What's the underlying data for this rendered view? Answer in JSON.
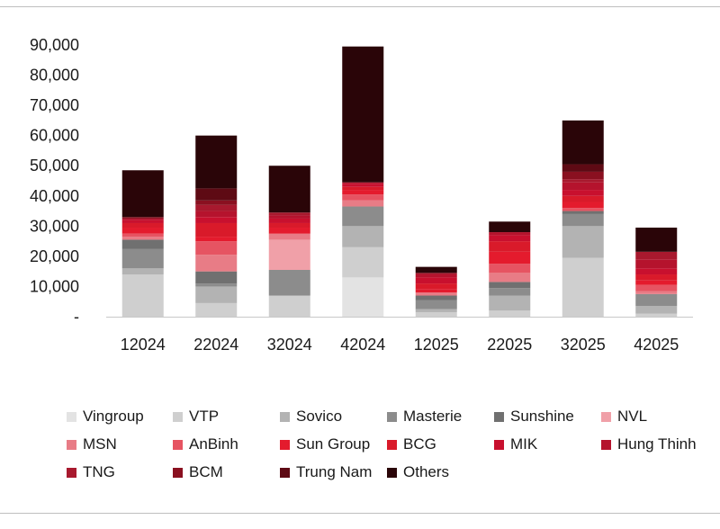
{
  "chart_data": {
    "type": "bar",
    "stacked": true,
    "title": "",
    "xlabel": "",
    "ylabel": "",
    "ylim": [
      0,
      90000
    ],
    "yticks": [
      {
        "value": 0,
        "label": "-"
      },
      {
        "value": 10000,
        "label": "10,000"
      },
      {
        "value": 20000,
        "label": "20,000"
      },
      {
        "value": 30000,
        "label": "30,000"
      },
      {
        "value": 40000,
        "label": "40,000"
      },
      {
        "value": 50000,
        "label": "50,000"
      },
      {
        "value": 60000,
        "label": "60,000"
      },
      {
        "value": 70000,
        "label": "70,000"
      },
      {
        "value": 80000,
        "label": "80,000"
      },
      {
        "value": 90000,
        "label": "90,000"
      }
    ],
    "grid": false,
    "legend_position": "bottom",
    "categories": [
      "12024",
      "22024",
      "32024",
      "42024",
      "12025",
      "22025",
      "32025",
      "42025"
    ],
    "series": [
      {
        "name": "Vingroup",
        "color": "#e3e3e3",
        "values": [
          0,
          0,
          0,
          13000,
          0,
          0,
          0,
          0
        ]
      },
      {
        "name": "VTP",
        "color": "#cfcfcf",
        "values": [
          14000,
          4500,
          7000,
          10000,
          1500,
          2000,
          19500,
          1000
        ]
      },
      {
        "name": "Sovico",
        "color": "#b3b3b3",
        "values": [
          2000,
          5500,
          0,
          7000,
          1000,
          5000,
          10500,
          2500
        ]
      },
      {
        "name": "Masterie",
        "color": "#8c8c8c",
        "values": [
          6500,
          1000,
          8500,
          6500,
          3000,
          2500,
          4000,
          4000
        ]
      },
      {
        "name": "Sunshine",
        "color": "#707070",
        "values": [
          3000,
          4000,
          0,
          0,
          1500,
          2000,
          1000,
          0
        ]
      },
      {
        "name": "NVL",
        "color": "#f0a0a8",
        "values": [
          0,
          0,
          10000,
          0,
          0,
          0,
          0,
          0
        ]
      },
      {
        "name": "MSN",
        "color": "#e87c86",
        "values": [
          1000,
          5500,
          2000,
          2000,
          1000,
          3000,
          0,
          1000
        ]
      },
      {
        "name": "AnBinh",
        "color": "#e65462",
        "values": [
          1000,
          4500,
          0,
          2000,
          0,
          3000,
          1000,
          2000
        ]
      },
      {
        "name": "Sun Group",
        "color": "#e41b2d",
        "values": [
          2000,
          1500,
          2000,
          1500,
          1000,
          4000,
          2000,
          1500
        ]
      },
      {
        "name": "BCG",
        "color": "#d91a2a",
        "values": [
          1500,
          4500,
          1500,
          1000,
          2000,
          3500,
          2000,
          2000
        ]
      },
      {
        "name": "MIK",
        "color": "#c8102e",
        "values": [
          1000,
          2000,
          1500,
          1000,
          2000,
          2000,
          2000,
          2000
        ]
      },
      {
        "name": "Hung Thinh",
        "color": "#b5132d",
        "values": [
          500,
          2000,
          1000,
          500,
          1000,
          1000,
          2500,
          3000
        ]
      },
      {
        "name": "TNG",
        "color": "#a8192e",
        "values": [
          0,
          2000,
          1000,
          0,
          500,
          0,
          1000,
          2500
        ]
      },
      {
        "name": "BCM",
        "color": "#8a1020",
        "values": [
          500,
          1500,
          0,
          0,
          0,
          0,
          2500,
          0
        ]
      },
      {
        "name": "Trung Nam",
        "color": "#5e0a14",
        "values": [
          0,
          4000,
          0,
          0,
          0,
          0,
          2500,
          0
        ]
      },
      {
        "name": "Others",
        "color": "#2a0508",
        "values": [
          15500,
          17500,
          15500,
          45000,
          2000,
          3500,
          14500,
          8000
        ]
      }
    ]
  }
}
